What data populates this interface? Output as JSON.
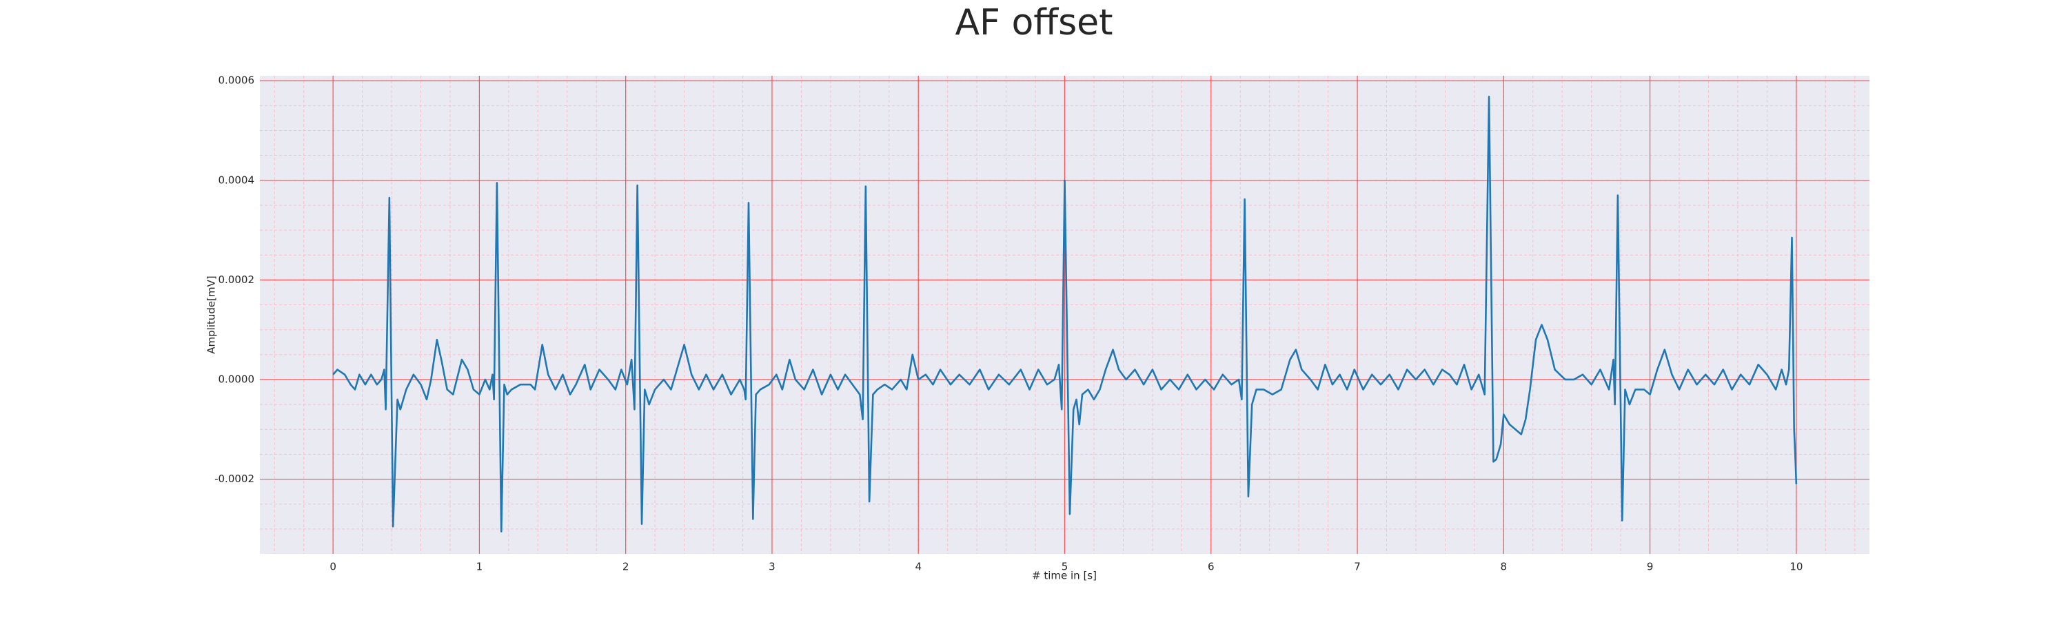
{
  "chart_data": {
    "type": "line",
    "title": "AF offset",
    "xlabel": "# time in [s]",
    "ylabel": "Amplitude[mV]",
    "color": "#1f77b4",
    "grid": true,
    "minor_grid": true,
    "xlim": [
      -0.5,
      10.5
    ],
    "ylim": [
      -0.00035,
      0.00061
    ],
    "xticks": [
      0,
      1,
      2,
      3,
      4,
      5,
      6,
      7,
      8,
      9,
      10
    ],
    "yticks": [
      -0.0002,
      {
        "value": 0,
        "label": "0.0000"
      },
      0.0002,
      0.0004,
      0.0006
    ],
    "x": [
      0,
      0.03,
      0.08,
      0.12,
      0.15,
      0.18,
      0.22,
      0.26,
      0.3,
      0.33,
      0.35,
      0.36,
      0.385,
      0.41,
      0.44,
      0.46,
      0.5,
      0.55,
      0.6,
      0.64,
      0.67,
      0.71,
      0.74,
      0.78,
      0.82,
      0.88,
      0.92,
      0.96,
      1.0,
      1.04,
      1.07,
      1.09,
      1.1,
      1.12,
      1.15,
      1.17,
      1.19,
      1.22,
      1.28,
      1.35,
      1.38,
      1.43,
      1.47,
      1.52,
      1.57,
      1.62,
      1.66,
      1.72,
      1.76,
      1.82,
      1.88,
      1.93,
      1.97,
      2.01,
      2.04,
      2.06,
      2.08,
      2.11,
      2.13,
      2.16,
      2.2,
      2.26,
      2.31,
      2.36,
      2.4,
      2.45,
      2.5,
      2.55,
      2.6,
      2.66,
      2.72,
      2.78,
      2.81,
      2.82,
      2.84,
      2.87,
      2.89,
      2.92,
      2.98,
      3.03,
      3.07,
      3.12,
      3.16,
      3.22,
      3.28,
      3.34,
      3.4,
      3.45,
      3.5,
      3.55,
      3.6,
      3.62,
      3.64,
      3.665,
      3.69,
      3.72,
      3.77,
      3.82,
      3.88,
      3.92,
      3.96,
      4.0,
      4.05,
      4.1,
      4.15,
      4.22,
      4.28,
      4.35,
      4.42,
      4.48,
      4.55,
      4.62,
      4.7,
      4.76,
      4.82,
      4.88,
      4.93,
      4.96,
      4.98,
      5.0,
      5.035,
      5.06,
      5.08,
      5.1,
      5.12,
      5.16,
      5.2,
      5.24,
      5.28,
      5.33,
      5.37,
      5.42,
      5.48,
      5.54,
      5.6,
      5.66,
      5.72,
      5.78,
      5.84,
      5.9,
      5.96,
      6.02,
      6.08,
      6.14,
      6.19,
      6.21,
      6.23,
      6.255,
      6.28,
      6.31,
      6.36,
      6.42,
      6.48,
      6.54,
      6.58,
      6.62,
      6.68,
      6.73,
      6.78,
      6.83,
      6.88,
      6.93,
      6.98,
      7.04,
      7.1,
      7.16,
      7.22,
      7.28,
      7.34,
      7.4,
      7.46,
      7.52,
      7.58,
      7.63,
      7.68,
      7.73,
      7.78,
      7.83,
      7.87,
      7.9,
      7.93,
      7.95,
      7.98,
      8.0,
      8.04,
      8.08,
      8.12,
      8.15,
      8.18,
      8.22,
      8.26,
      8.3,
      8.35,
      8.42,
      8.48,
      8.54,
      8.6,
      8.66,
      8.72,
      8.75,
      8.76,
      8.78,
      8.81,
      8.83,
      8.86,
      8.9,
      8.96,
      9.0,
      9.05,
      9.1,
      9.15,
      9.2,
      9.26,
      9.32,
      9.38,
      9.44,
      9.5,
      9.56,
      9.62,
      9.68,
      9.74,
      9.8,
      9.86,
      9.9,
      9.93,
      9.95,
      9.97,
      9.985,
      9.995,
      10.0
    ],
    "values": [
      1e-05,
      2e-05,
      1e-05,
      -1e-05,
      -2e-05,
      1e-05,
      -1e-05,
      1e-05,
      -1e-05,
      0,
      2e-05,
      -6e-05,
      0.000365,
      -0.000295,
      -4e-05,
      -6e-05,
      -2e-05,
      1e-05,
      -1e-05,
      -4e-05,
      0,
      8e-05,
      4e-05,
      -2e-05,
      -3e-05,
      4e-05,
      2e-05,
      -2e-05,
      -3e-05,
      0,
      -2e-05,
      1e-05,
      -4e-05,
      0.000395,
      -0.000305,
      -1e-05,
      -3e-05,
      -2e-05,
      -1e-05,
      -1e-05,
      -2e-05,
      7e-05,
      1e-05,
      -2e-05,
      1e-05,
      -3e-05,
      -1e-05,
      3e-05,
      -2e-05,
      2e-05,
      0,
      -2e-05,
      2e-05,
      -1e-05,
      4e-05,
      -6e-05,
      0.00039,
      -0.00029,
      -2e-05,
      -5e-05,
      -2e-05,
      0,
      -2e-05,
      3e-05,
      7e-05,
      1e-05,
      -2e-05,
      1e-05,
      -2e-05,
      1e-05,
      -3e-05,
      0,
      -2e-05,
      -4e-05,
      0.000355,
      -0.00028,
      -3e-05,
      -2e-05,
      -1e-05,
      1e-05,
      -2e-05,
      4e-05,
      0,
      -2e-05,
      2e-05,
      -3e-05,
      1e-05,
      -2e-05,
      1e-05,
      -1e-05,
      -3e-05,
      -8e-05,
      0.000388,
      -0.000245,
      -3e-05,
      -2e-05,
      -1e-05,
      -2e-05,
      0,
      -2e-05,
      5e-05,
      0,
      1e-05,
      -1e-05,
      2e-05,
      -1e-05,
      1e-05,
      -1e-05,
      2e-05,
      -2e-05,
      1e-05,
      -1e-05,
      2e-05,
      -2e-05,
      2e-05,
      -1e-05,
      0,
      3e-05,
      -6e-05,
      0.0004,
      -0.00027,
      -6e-05,
      -4e-05,
      -9e-05,
      -3e-05,
      -2e-05,
      -4e-05,
      -2e-05,
      2e-05,
      6e-05,
      2e-05,
      0,
      2e-05,
      -1e-05,
      2e-05,
      -2e-05,
      0,
      -2e-05,
      1e-05,
      -2e-05,
      0,
      -2e-05,
      1e-05,
      -1e-05,
      0,
      -4e-05,
      0.000362,
      -0.000235,
      -5e-05,
      -2e-05,
      -2e-05,
      -3e-05,
      -2e-05,
      4e-05,
      6e-05,
      2e-05,
      0,
      -2e-05,
      3e-05,
      -1e-05,
      1e-05,
      -2e-05,
      2e-05,
      -2e-05,
      1e-05,
      -1e-05,
      1e-05,
      -2e-05,
      2e-05,
      0,
      2e-05,
      -1e-05,
      2e-05,
      1e-05,
      -1e-05,
      3e-05,
      -2e-05,
      1e-05,
      -3e-05,
      0.000568,
      -0.000165,
      -0.00016,
      -0.00013,
      -7e-05,
      -9e-05,
      -0.0001,
      -0.00011,
      -8e-05,
      -2e-05,
      8e-05,
      0.00011,
      8e-05,
      2e-05,
      0,
      0,
      1e-05,
      -1e-05,
      2e-05,
      -2e-05,
      4e-05,
      -5e-05,
      0.00037,
      -0.000283,
      -2e-05,
      -5e-05,
      -2e-05,
      -2e-05,
      -3e-05,
      2e-05,
      6e-05,
      1e-05,
      -2e-05,
      2e-05,
      -1e-05,
      1e-05,
      -1e-05,
      2e-05,
      -2e-05,
      1e-05,
      -1e-05,
      3e-05,
      1e-05,
      -2e-05,
      2e-05,
      -1e-05,
      2e-05,
      0.000285,
      -0.0001,
      -0.00017,
      -0.00021
    ]
  }
}
